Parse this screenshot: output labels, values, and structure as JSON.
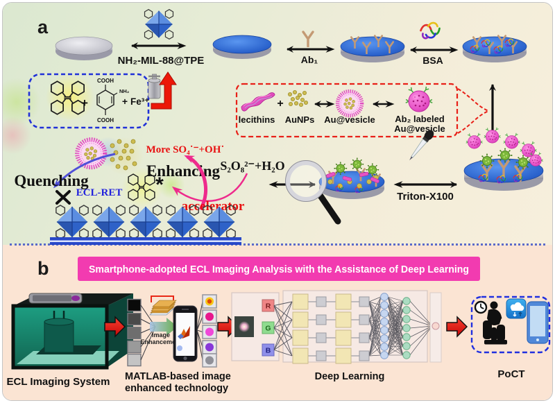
{
  "panel_a": {
    "label": "a",
    "mof_arrow_label": "NH₂-MIL-88@TPE",
    "ab1_label": "Ab₁",
    "bsa_label": "BSA",
    "precursor": {
      "cooh_top": "COOH",
      "nh2": "NH₂",
      "cooh_bottom": "COOH",
      "plus_left": "+",
      "plus_right": "+",
      "iron": "Fe³⁺"
    },
    "vesicle_prep": {
      "lecithins": "lecithins",
      "plus": "+",
      "aunps": "AuNPs",
      "au_vesicle": "Au@vesicle",
      "ab2_line1": "Ab₂ labeled",
      "ab2_line2": "Au@vesicle"
    },
    "mechanism": {
      "quenching": "Quenching",
      "ecl_ret": "ECL-RET",
      "excited_star": "*",
      "enhancing": "Enhancing",
      "radicals": "More SO₄˙⁻+OH˙",
      "persulfate": "S₂O₈²⁻+H₂O",
      "accelerator": "accelerator"
    },
    "triton_label": "Triton-X100"
  },
  "panel_b": {
    "label": "b",
    "banner": "Smartphone-adopted ECL Imaging Analysis with the Assistance of Deep Learning",
    "ecl_system_label": "ECL Imaging System",
    "enhancement_line1": "Image",
    "enhancement_line2": "Enhancement",
    "matlab_line1": "MATLAB-based image",
    "matlab_line2": "enhanced technology",
    "deep_learning_label": "Deep Learning",
    "poct_label": "PoCT",
    "channels": [
      "R",
      "G",
      "B"
    ]
  },
  "colors": {
    "banner": "#f23bb0",
    "arrow_red": "#ec1808",
    "pink_arrow": "#ee2a8c",
    "blue_text": "#2222dd",
    "red_text": "#e81010",
    "panel_a_bg": "#eceddb",
    "panel_b_bg": "#fbe4d3",
    "separator_blue": "#4054c8",
    "electrode_blue": "#2a62cc",
    "mof_blue": "#2e62c8"
  }
}
